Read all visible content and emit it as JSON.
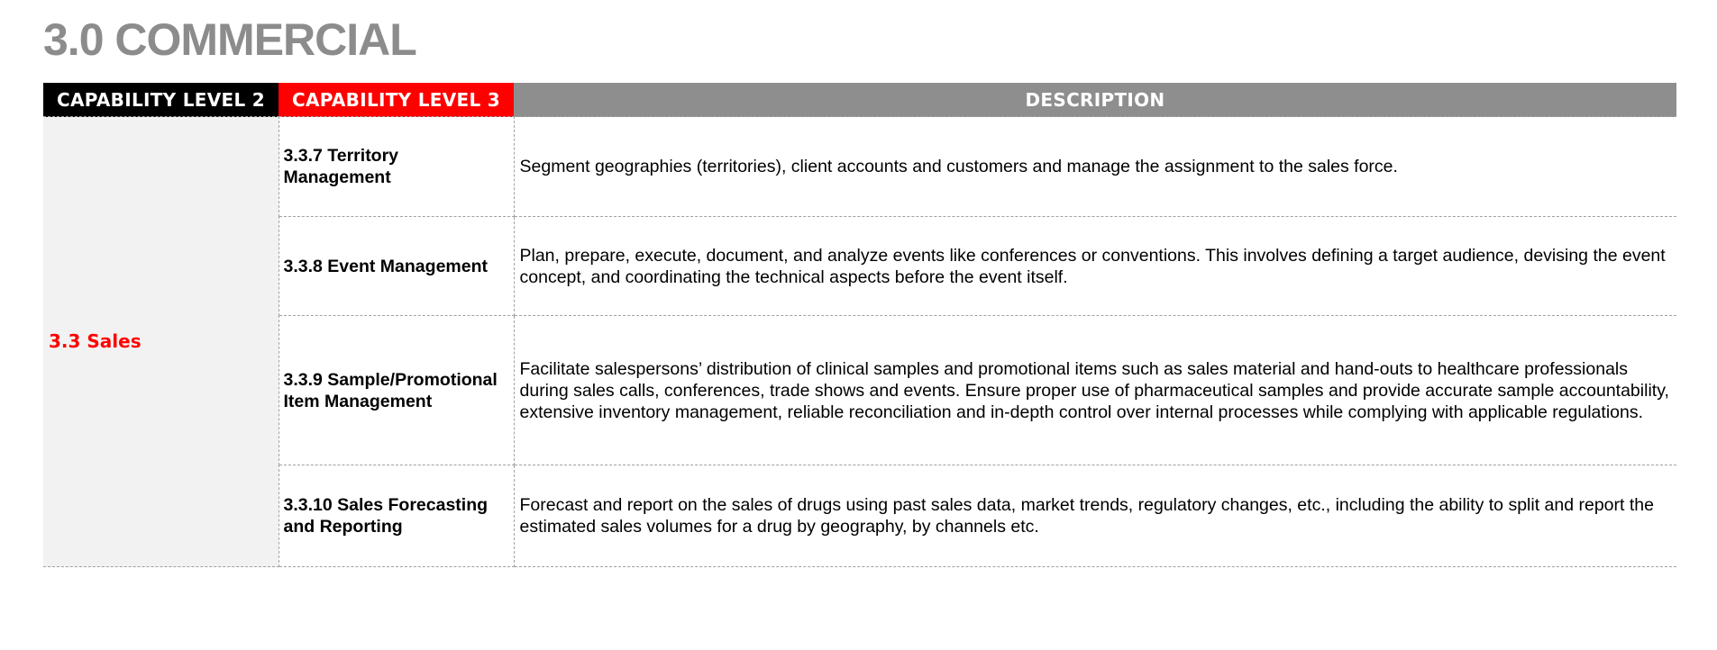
{
  "page": {
    "title": "3.0 COMMERCIAL"
  },
  "table": {
    "headers": {
      "level2": "CAPABILITY LEVEL 2",
      "level3": "CAPABILITY LEVEL 3",
      "description": "DESCRIPTION"
    },
    "level2_value": "3.3 Sales",
    "rows": [
      {
        "level3": "3.3.7 Territory Management",
        "description": "Segment geographies (territories), client accounts and customers and manage the assignment to the sales force."
      },
      {
        "level3": "3.3.8 Event Management",
        "description": "Plan, prepare, execute, document, and analyze events like conferences or conventions. This involves defining a target audience, devising the event concept, and coordinating the technical aspects before the event itself."
      },
      {
        "level3": "3.3.9 Sample/Promotional Item Management",
        "description": "Facilitate salespersons’ distribution of clinical samples and promotional items such as sales material and hand-outs to healthcare professionals during sales calls, conferences, trade shows and events. Ensure proper use of pharmaceutical samples and provide accurate sample accountability, extensive inventory management, reliable reconciliation and in-depth control over internal processes while complying with applicable regulations."
      },
      {
        "level3": "3.3.10 Sales Forecasting and Reporting",
        "description": "Forecast and report on the sales of drugs using past sales data, market trends, regulatory changes, etc., including the ability to split and report the estimated sales volumes for a drug by geography, by channels etc."
      }
    ]
  },
  "colors": {
    "title": "#8c8c8c",
    "header_level2_bg": "#000000",
    "header_level3_bg": "#ff0000",
    "header_description_bg": "#8e8e8e",
    "level2_text": "#ff0000",
    "level2_cell_bg": "#f2f2f2"
  }
}
